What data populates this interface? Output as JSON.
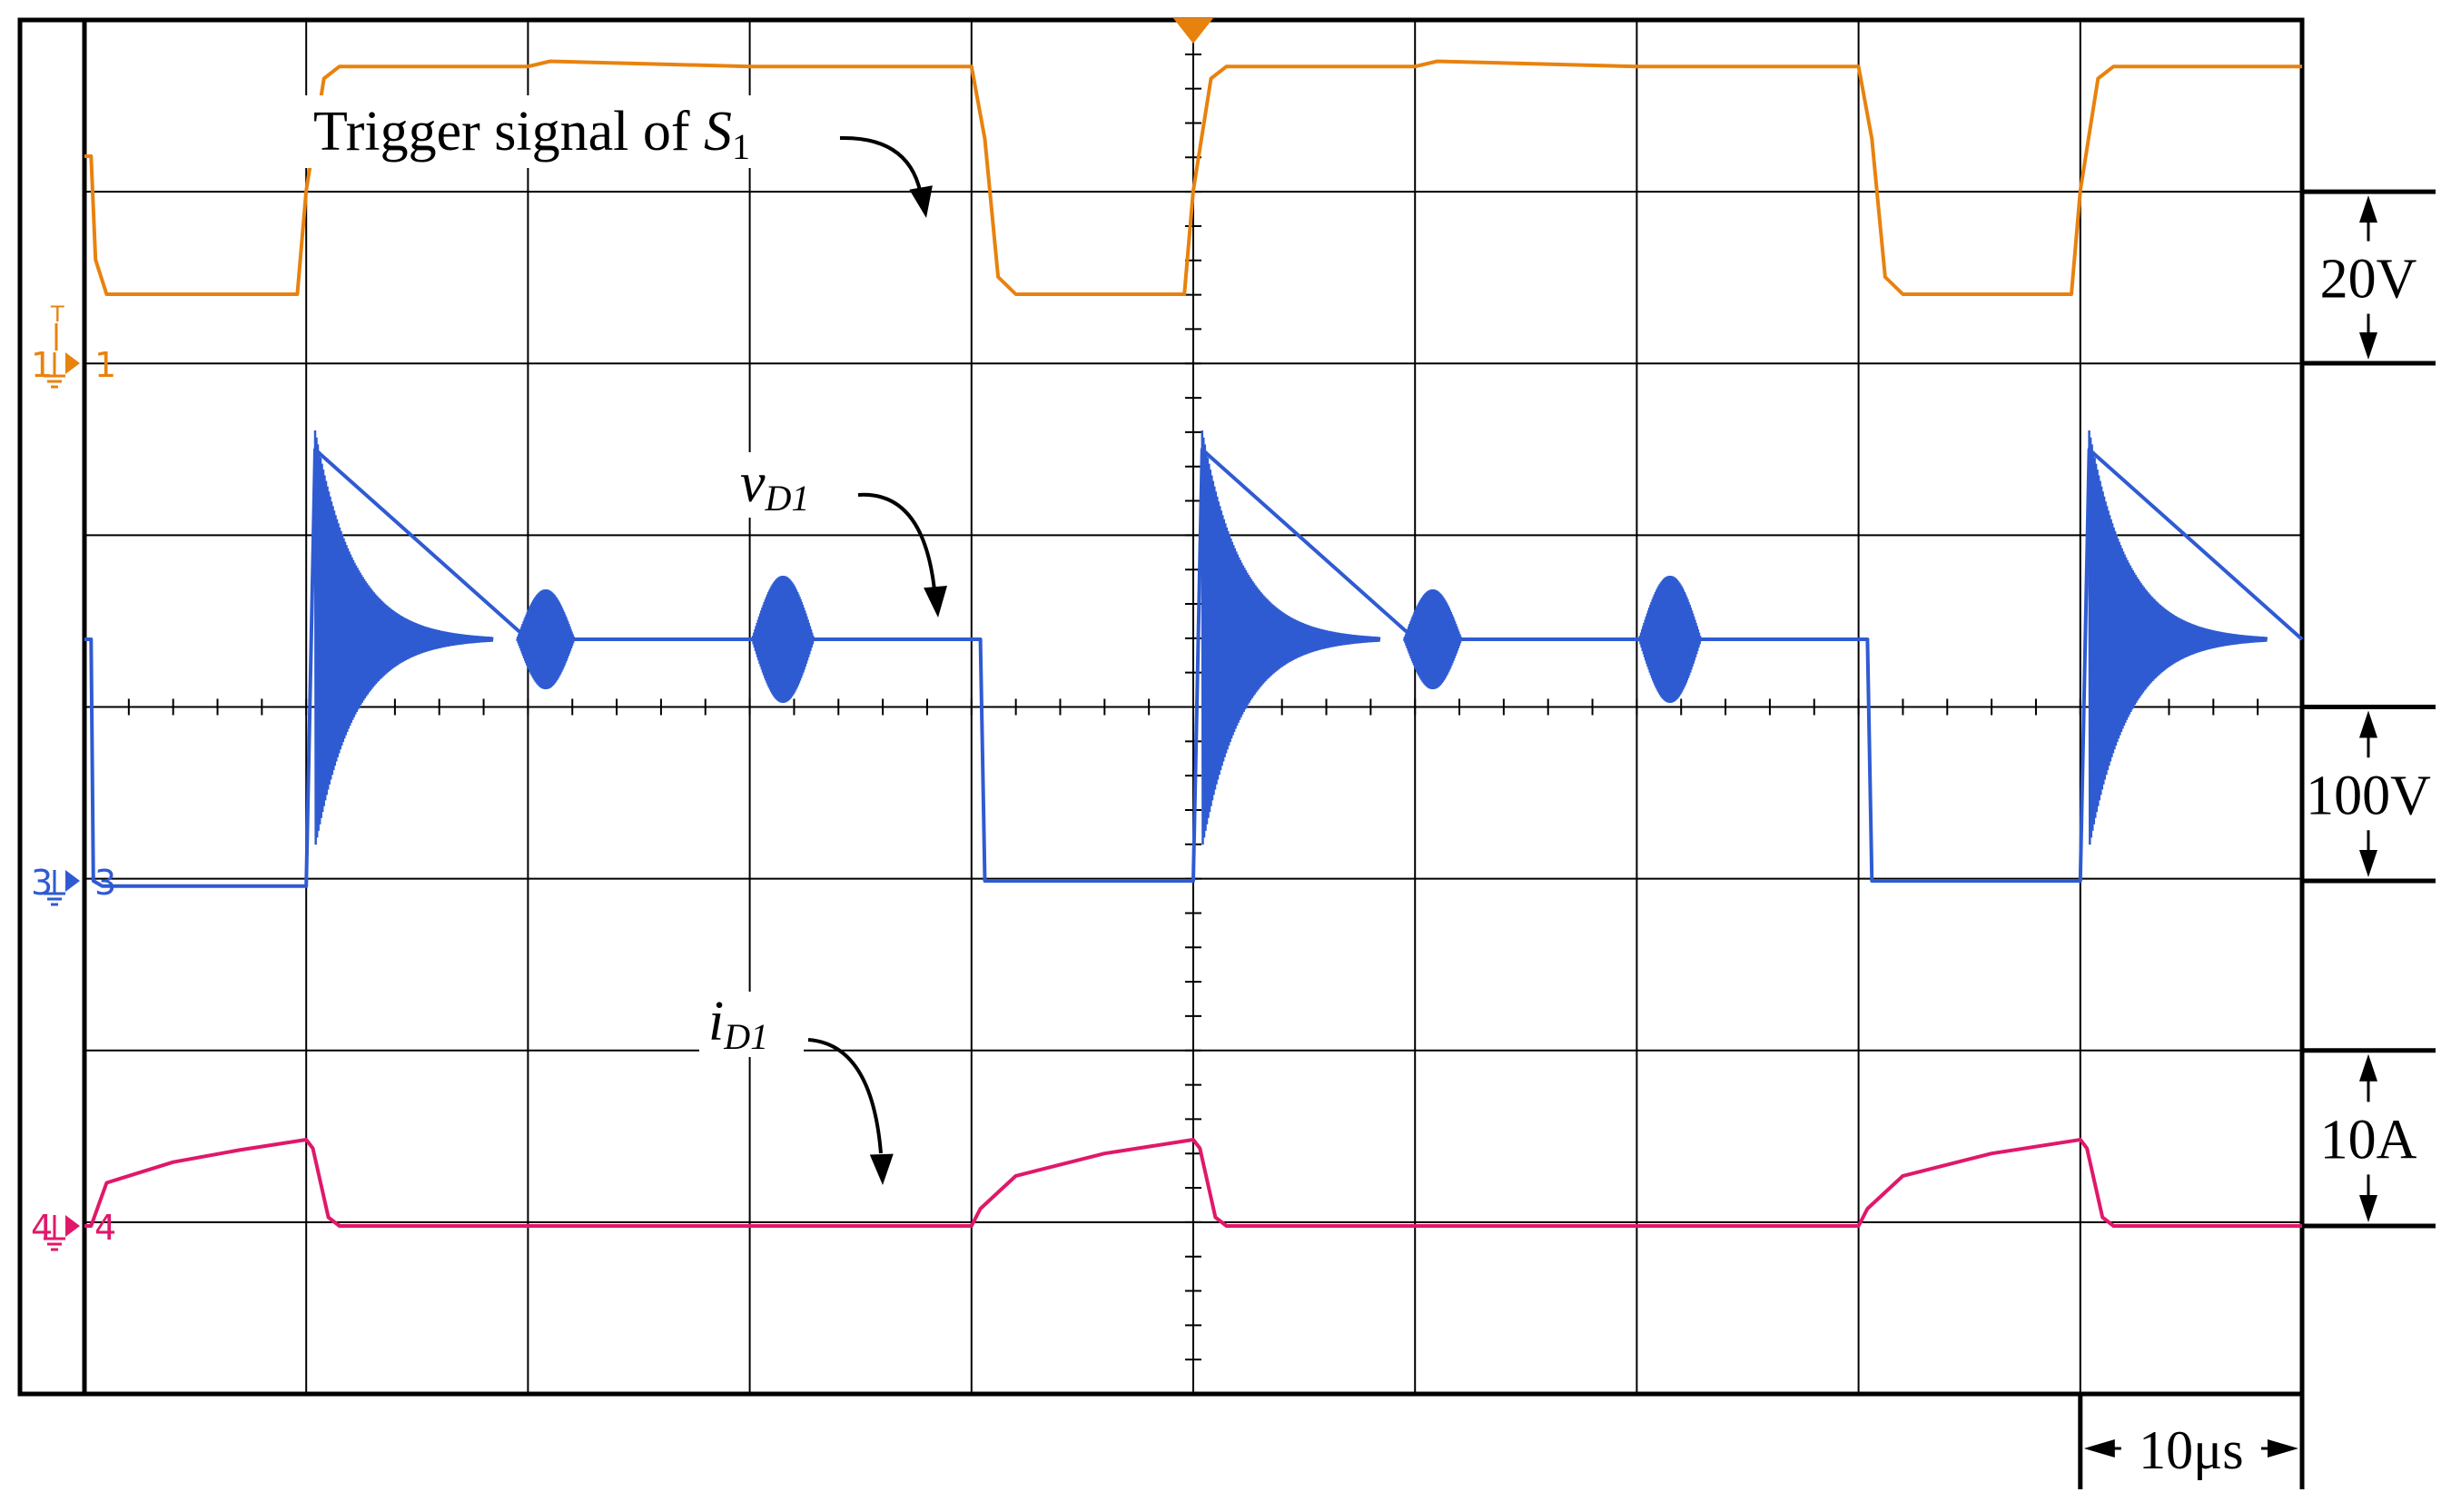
{
  "chart_data": {
    "type": "line",
    "title": "",
    "grid": true,
    "x_divisions": 10,
    "y_divisions": 8,
    "x_scale_label": "10μs",
    "x_scale": {
      "value": 10,
      "unit": "μs",
      "per": "division"
    },
    "time_us": [
      0,
      10,
      20,
      30,
      40,
      50,
      60,
      70,
      80,
      90,
      100
    ],
    "colors": {
      "ch1": "#E8820E",
      "ch3": "#2F5BD2",
      "ch4": "#E0186A",
      "grid": "#000000"
    },
    "series": [
      {
        "name": "Trigger signal of S1",
        "label_text": "Trigger signal of ",
        "label_sym": "S",
        "label_sub": "1",
        "channel": "1",
        "scale_label": "20V",
        "scale": {
          "value": 20,
          "unit": "V",
          "per": "division"
        },
        "points": [
          [
            0.0,
            1.2
          ],
          [
            0.3,
            1.2
          ],
          [
            0.5,
            0.6
          ],
          [
            1.0,
            0.4
          ],
          [
            9.6,
            0.4
          ],
          [
            10.0,
            1.0
          ],
          [
            10.8,
            1.65
          ],
          [
            11.5,
            1.72
          ],
          [
            20.0,
            1.72
          ],
          [
            21.0,
            1.75
          ],
          [
            30.0,
            1.72
          ],
          [
            40.0,
            1.72
          ],
          [
            40.6,
            1.3
          ],
          [
            41.2,
            0.5
          ],
          [
            42.0,
            0.4
          ],
          [
            49.6,
            0.4
          ],
          [
            50.0,
            1.0
          ],
          [
            50.8,
            1.65
          ],
          [
            51.5,
            1.72
          ],
          [
            60.0,
            1.72
          ],
          [
            61.0,
            1.75
          ],
          [
            70.0,
            1.72
          ],
          [
            80.0,
            1.72
          ],
          [
            80.6,
            1.3
          ],
          [
            81.2,
            0.5
          ],
          [
            82.0,
            0.4
          ],
          [
            89.6,
            0.4
          ],
          [
            90.0,
            1.0
          ],
          [
            90.8,
            1.65
          ],
          [
            91.5,
            1.72
          ],
          [
            100.0,
            1.72
          ]
        ]
      },
      {
        "name": "vD1",
        "label_sym": "v",
        "label_sub": "D1",
        "channel": "3",
        "scale_label": "100V",
        "scale": {
          "value": 100,
          "unit": "V",
          "per": "division"
        },
        "points": [
          [
            0.0,
            1.4
          ],
          [
            0.3,
            1.4
          ],
          [
            0.4,
            0.0
          ],
          [
            0.8,
            -0.03
          ],
          [
            9.6,
            -0.03
          ],
          [
            10.0,
            -0.03
          ],
          [
            10.4,
            2.5
          ],
          [
            20.0,
            1.4
          ],
          [
            30.0,
            1.4
          ],
          [
            40.0,
            1.4
          ],
          [
            40.4,
            1.4
          ],
          [
            40.6,
            0.0
          ],
          [
            50.0,
            0.0
          ],
          [
            50.4,
            2.5
          ],
          [
            60.0,
            1.4
          ],
          [
            70.0,
            1.4
          ],
          [
            80.0,
            1.4
          ],
          [
            80.4,
            1.4
          ],
          [
            80.6,
            0.0
          ],
          [
            90.0,
            0.0
          ],
          [
            90.4,
            2.5
          ],
          [
            100.0,
            1.4
          ]
        ]
      },
      {
        "name": "iD1",
        "label_sym": "i",
        "label_sub": "D1",
        "channel": "4",
        "scale_label": "10A",
        "scale": {
          "value": 10,
          "unit": "A",
          "per": "division"
        },
        "points": [
          [
            0.0,
            0.0
          ],
          [
            0.3,
            0.0
          ],
          [
            1.0,
            0.25
          ],
          [
            4.0,
            0.37
          ],
          [
            7.0,
            0.44
          ],
          [
            10.0,
            0.5
          ],
          [
            10.3,
            0.45
          ],
          [
            11.0,
            0.05
          ],
          [
            11.5,
            0.0
          ],
          [
            40.0,
            0.0
          ],
          [
            40.4,
            0.1
          ],
          [
            42.0,
            0.29
          ],
          [
            46.0,
            0.42
          ],
          [
            50.0,
            0.5
          ],
          [
            50.3,
            0.45
          ],
          [
            51.0,
            0.05
          ],
          [
            51.5,
            0.0
          ],
          [
            80.0,
            0.0
          ],
          [
            80.4,
            0.1
          ],
          [
            82.0,
            0.29
          ],
          [
            86.0,
            0.42
          ],
          [
            90.0,
            0.5
          ],
          [
            90.3,
            0.45
          ],
          [
            91.0,
            0.05
          ],
          [
            91.5,
            0.0
          ],
          [
            100.0,
            0.0
          ]
        ]
      }
    ]
  },
  "markers": {
    "ch1": {
      "number": "1",
      "ground": "1",
      "trigger": "T"
    },
    "ch3": {
      "number": "3",
      "ground": "3"
    },
    "ch4": {
      "number": "4",
      "ground": "4"
    }
  }
}
